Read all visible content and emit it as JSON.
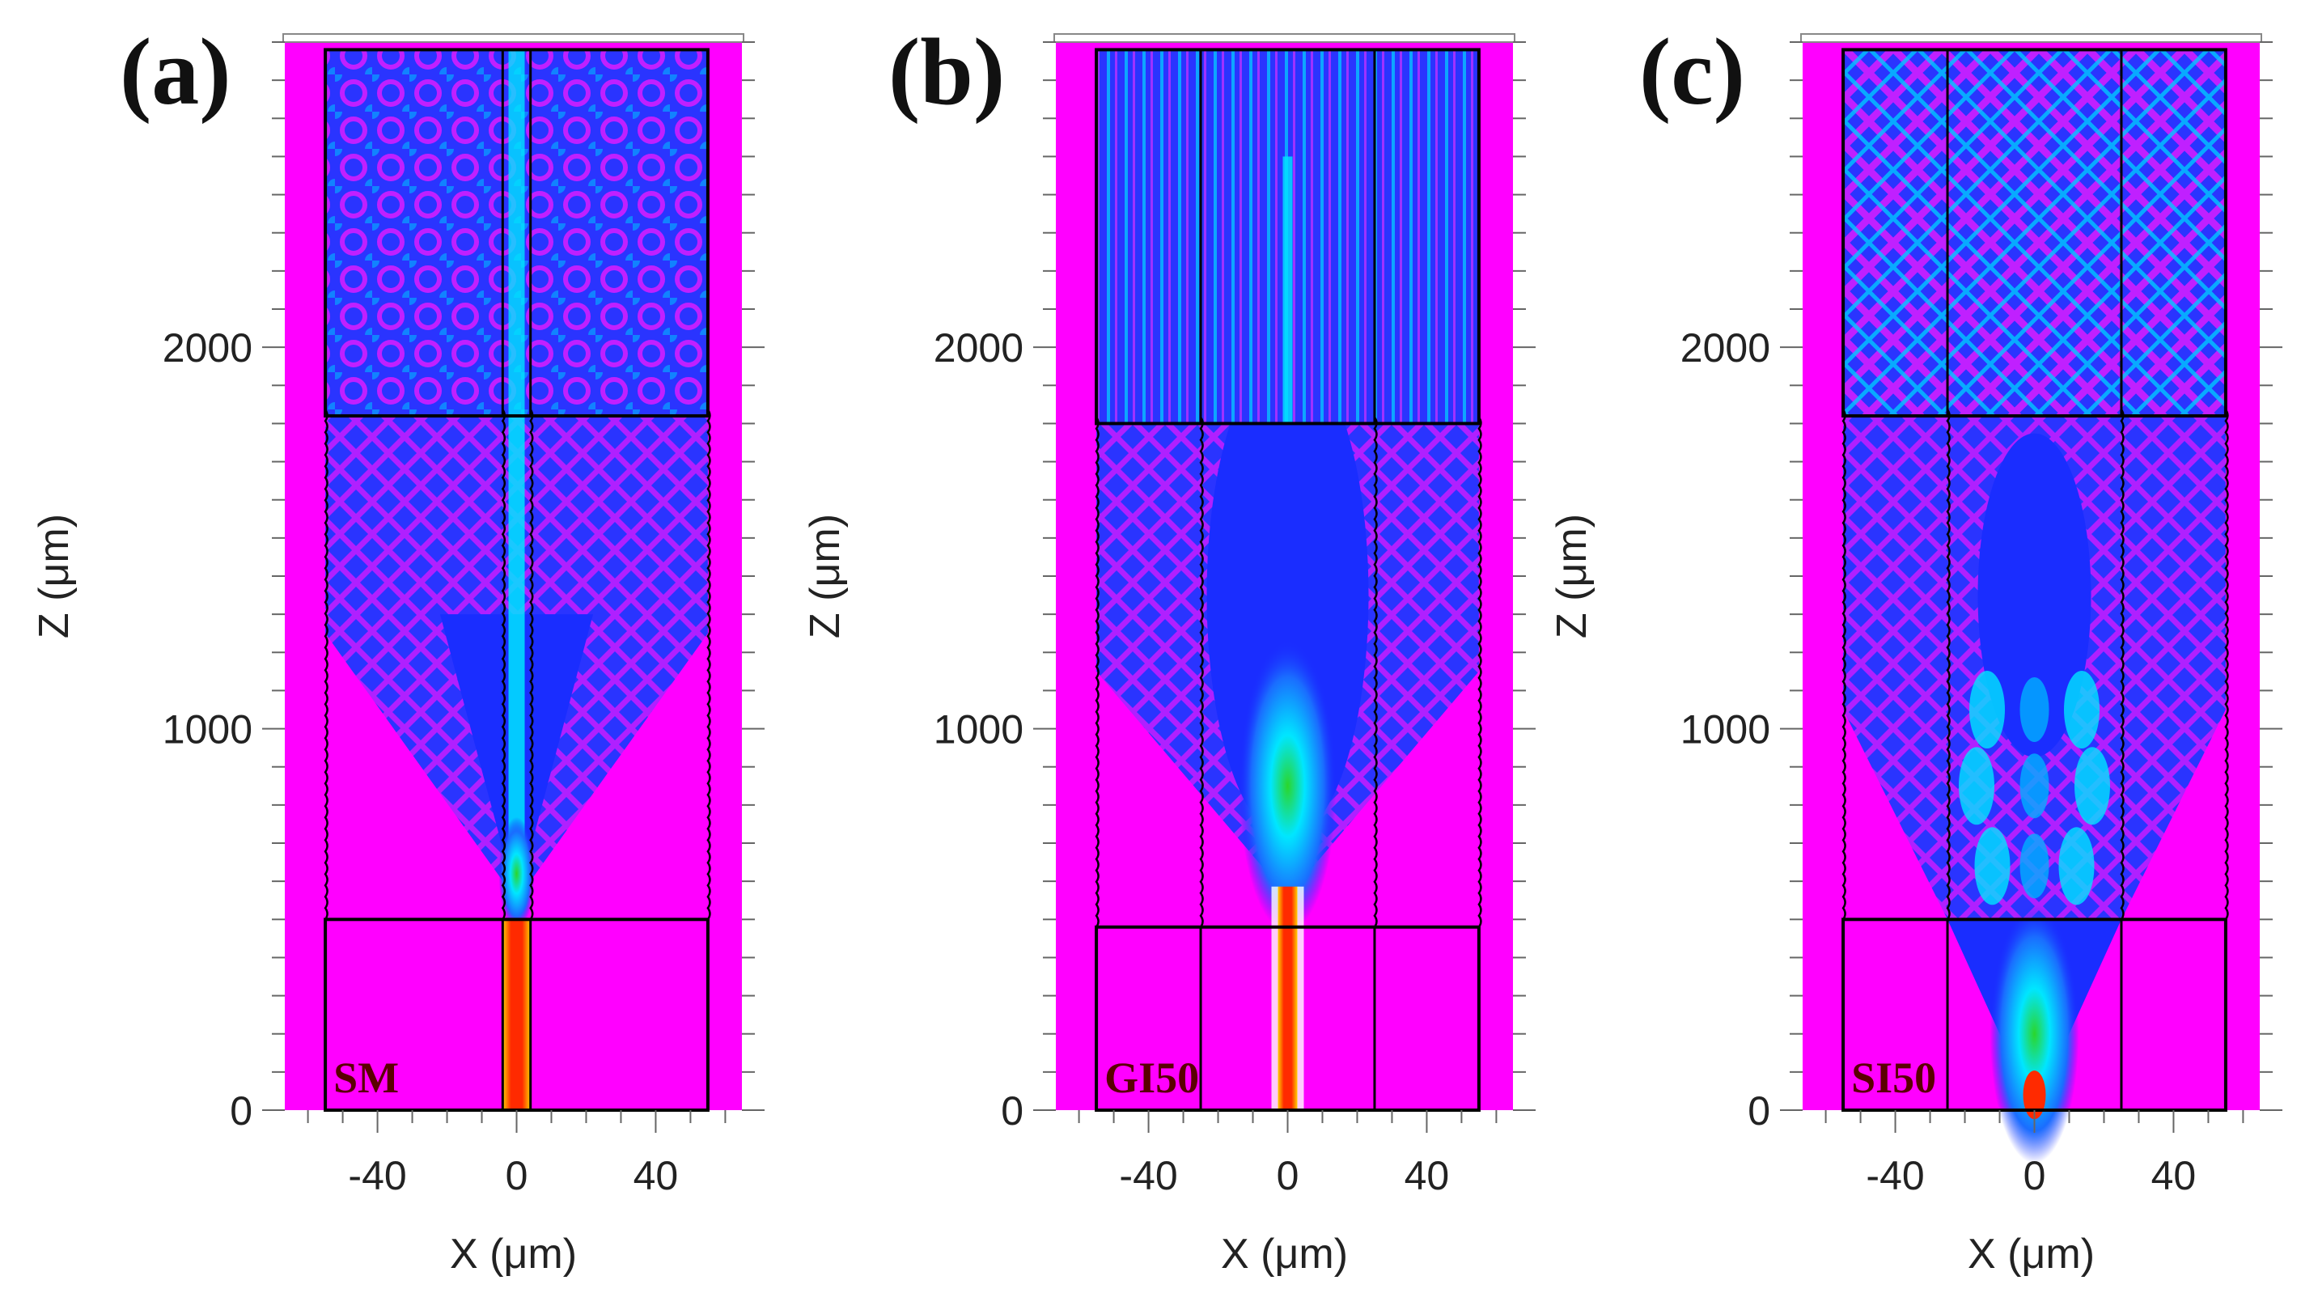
{
  "chart_data": [
    {
      "type": "heatmap",
      "panel_label": "(a)",
      "inset_label": "SM",
      "xlabel": "X (μm)",
      "ylabel": "Z (μm)",
      "xlim": [
        -62,
        62
      ],
      "ylim": [
        0,
        2800
      ],
      "xticks": [
        -40,
        0,
        40
      ],
      "xtick_labels": [
        "-40",
        "0",
        "40"
      ],
      "yticks": [
        0,
        1000,
        2000
      ],
      "ytick_labels": [
        "0",
        "1000",
        "2000"
      ],
      "input_fiber_core_half_width": 4,
      "input_fiber_length": 500,
      "output_fiber_core_half_width": 4,
      "output_fiber_start": 1820,
      "field_intensity": "single-mode beam diverging into a cone after z≈550 and filling the waveguide"
    },
    {
      "type": "heatmap",
      "panel_label": "(b)",
      "inset_label": "GI50",
      "xlabel": "X (μm)",
      "ylabel": "Z (μm)",
      "xlim": [
        -62,
        62
      ],
      "ylim": [
        0,
        2800
      ],
      "xticks": [
        -40,
        0,
        40
      ],
      "xtick_labels": [
        "-40",
        "0",
        "40"
      ],
      "yticks": [
        0,
        1000,
        2000
      ],
      "ytick_labels": [
        "0",
        "1000",
        "2000"
      ],
      "input_fiber_core_half_width": 25,
      "input_fiber_length": 480,
      "output_fiber_core_half_width": 25,
      "output_fiber_start": 1800,
      "field_intensity": "graded-index beam focusing near z≈700 then expanding"
    },
    {
      "type": "heatmap",
      "panel_label": "(c)",
      "inset_label": "SI50",
      "xlabel": "X (μm)",
      "ylabel": "Z (μm)",
      "xlim": [
        -62,
        62
      ],
      "ylim": [
        0,
        2800
      ],
      "xticks": [
        -40,
        0,
        40
      ],
      "xtick_labels": [
        "-40",
        "0",
        "40"
      ],
      "yticks": [
        0,
        1000,
        2000
      ],
      "ytick_labels": [
        "0",
        "1000",
        "2000"
      ],
      "input_fiber_core_half_width": 25,
      "input_fiber_length": 500,
      "output_fiber_core_half_width": 25,
      "output_fiber_start": 1820,
      "field_intensity": "step-index multimode interference pattern with crossing rays"
    }
  ],
  "colors": {
    "background_field": "#ff00ff",
    "low_field": "#1a2dff",
    "mid_field": "#00e6ff",
    "high_field": "#2bd62b",
    "peak_field": "#ff2a00",
    "outline": "#000000"
  }
}
